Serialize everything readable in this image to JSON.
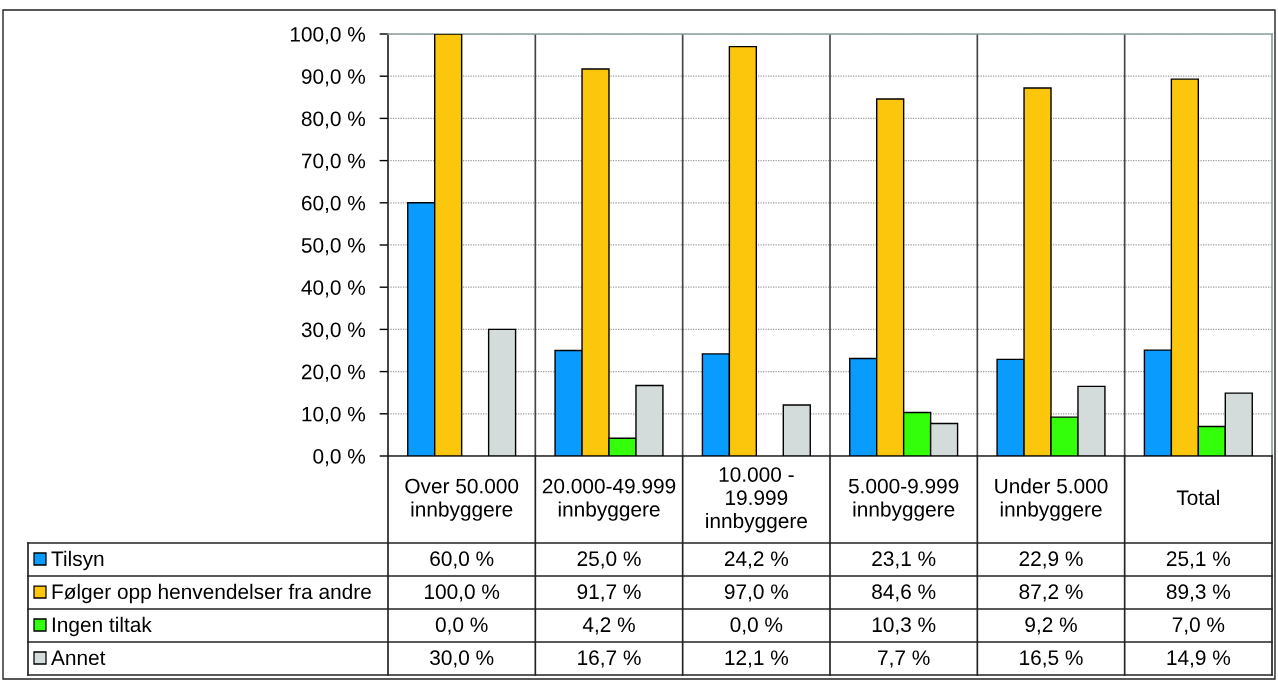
{
  "chart_data": {
    "type": "bar",
    "categories": [
      "Over 50.000 innbyggere",
      "20.000-49.999 innbyggere",
      "10.000 - 19.999 innbyggere",
      "5.000-9.999 innbyggere",
      "Under 5.000 innbyggere",
      "Total"
    ],
    "series": [
      {
        "name": "Tilsyn",
        "color": "#0a9bff",
        "values": [
          60.0,
          25.0,
          24.2,
          23.1,
          22.9,
          25.1
        ],
        "value_labels": [
          "60,0 %",
          "25,0 %",
          "24,2 %",
          "23,1 %",
          "22,9 %",
          "25,1 %"
        ]
      },
      {
        "name": "Følger opp henvendelser fra andre",
        "color": "#fcc60c",
        "values": [
          100.0,
          91.7,
          97.0,
          84.6,
          87.2,
          89.3
        ],
        "value_labels": [
          "100,0 %",
          "91,7 %",
          "97,0 %",
          "84,6 %",
          "87,2 %",
          "89,3 %"
        ]
      },
      {
        "name": "Ingen tiltak",
        "color": "#33ff0a",
        "values": [
          0.0,
          4.2,
          0.0,
          10.3,
          9.2,
          7.0
        ],
        "value_labels": [
          "0,0 %",
          "4,2 %",
          "0,0 %",
          "10,3 %",
          "9,2 %",
          "7,0 %"
        ]
      },
      {
        "name": "Annet",
        "color": "#d3dbdb",
        "values": [
          30.0,
          16.7,
          12.1,
          7.7,
          16.5,
          14.9
        ],
        "value_labels": [
          "30,0 %",
          "16,7 %",
          "12,1 %",
          "7,7 %",
          "16,5 %",
          "14,9 %"
        ]
      }
    ],
    "ylim": [
      0,
      100
    ],
    "yticks": [
      {
        "value": 0,
        "label": "0,0 %"
      },
      {
        "value": 10,
        "label": "10,0 %"
      },
      {
        "value": 20,
        "label": "20,0 %"
      },
      {
        "value": 30,
        "label": "30,0 %"
      },
      {
        "value": 40,
        "label": "40,0 %"
      },
      {
        "value": 50,
        "label": "50,0 %"
      },
      {
        "value": 60,
        "label": "60,0 %"
      },
      {
        "value": 70,
        "label": "70,0 %"
      },
      {
        "value": 80,
        "label": "80,0 %"
      },
      {
        "value": 90,
        "label": "90,0 %"
      },
      {
        "value": 100,
        "label": "100,0 %"
      }
    ],
    "grid": "y",
    "legend": "bottom left"
  }
}
